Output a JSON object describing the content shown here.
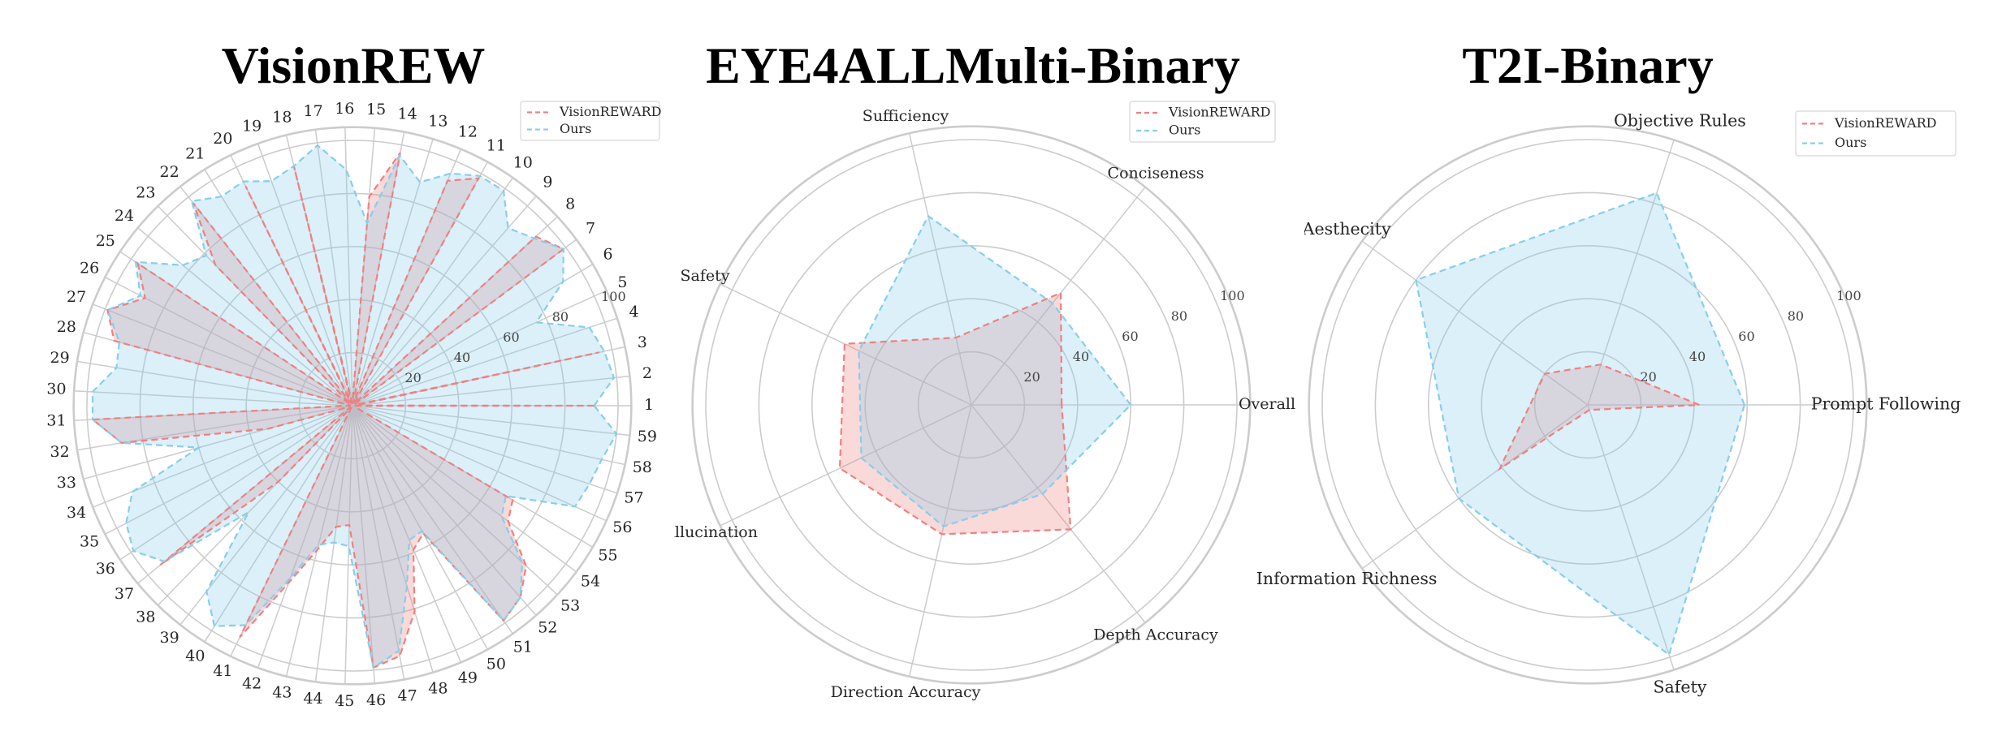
{
  "chart_data": [
    {
      "type": "radar",
      "title": "VisionREW",
      "categories": [
        "1",
        "2",
        "3",
        "4",
        "5",
        "6",
        "7",
        "8",
        "9",
        "10",
        "11",
        "12",
        "13",
        "14",
        "15",
        "16",
        "17",
        "18",
        "19",
        "20",
        "21",
        "22",
        "23",
        "24",
        "25",
        "26",
        "27",
        "28",
        "29",
        "30",
        "31",
        "32",
        "33",
        "34",
        "35",
        "36",
        "37",
        "38",
        "39",
        "40",
        "41",
        "42",
        "43",
        "44",
        "45",
        "46",
        "47",
        "48",
        "49",
        "50",
        "51",
        "52",
        "53",
        "54",
        "55",
        "56",
        "57",
        "58",
        "59"
      ],
      "rlim": [
        0,
        105
      ],
      "rticks": [
        20,
        40,
        60,
        80,
        100
      ],
      "rtick_labels": [
        "20",
        "40",
        "60",
        "80",
        "100"
      ],
      "legend": "top-right",
      "series": [
        {
          "name": "VisionREWARD",
          "color": "#F08080",
          "values": [
            91,
            1,
            95,
            1,
            1,
            1,
            99,
            94,
            1,
            1,
            98,
            92,
            1,
            97,
            79,
            1,
            1,
            93,
            1,
            92,
            1,
            97,
            74,
            1,
            97,
            88,
            99,
            93,
            1,
            1,
            98,
            88,
            33,
            1,
            1,
            1,
            94,
            40,
            1,
            1,
            97,
            71,
            56,
            46,
            45,
            99,
            96,
            81,
            59,
            55,
            99,
            96,
            89,
            73,
            70,
            1,
            1,
            1,
            1
          ]
        },
        {
          "name": "Ours",
          "color": "#87CEEB",
          "values": [
            91,
            99,
            97,
            94,
            76,
            92,
            99,
            93,
            89,
            99,
            99,
            95,
            88,
            96,
            69,
            89,
            99,
            93,
            90,
            94,
            93,
            98,
            79,
            83,
            98,
            90,
            99,
            91,
            90,
            98,
            98,
            88,
            60,
            89,
            96,
            99,
            92,
            56,
            89,
            98,
            92,
            69,
            54,
            52,
            53,
            99,
            94,
            71,
            55,
            54,
            99,
            96,
            87,
            70,
            67,
            92,
            94,
            96,
            100
          ]
        }
      ]
    },
    {
      "type": "radar",
      "title": "EYE4ALLMulti-Binary",
      "categories": [
        "Overall",
        "Conciseness",
        "Sufficiency",
        "Safety",
        "Hallucination",
        "Direction Accuracy",
        "Depth Accuracy"
      ],
      "rlim": [
        0,
        105
      ],
      "rticks": [
        20,
        40,
        60,
        80,
        100
      ],
      "rtick_labels": [
        "20",
        "40",
        "60",
        "80",
        "100"
      ],
      "legend": "top-right",
      "series": [
        {
          "name": "VisionREWARD",
          "color": "#F08080",
          "values": [
            34,
            54,
            26,
            53,
            55,
            50,
            60
          ]
        },
        {
          "name": "Ours",
          "color": "#87CEEB",
          "values": [
            60,
            49,
            73,
            47,
            46,
            47,
            43
          ]
        }
      ]
    },
    {
      "type": "radar",
      "title": "T2I-Binary",
      "categories": [
        "Prompt Following",
        "Objective Rules",
        "Aesthecity",
        "Information Richness",
        "Safety"
      ],
      "rlim": [
        0,
        105
      ],
      "rticks": [
        20,
        40,
        60,
        80,
        100
      ],
      "rtick_labels": [
        "20",
        "40",
        "60",
        "80",
        "100"
      ],
      "legend": "top-right",
      "series": [
        {
          "name": "VisionREWARD",
          "color": "#F08080",
          "values": [
            42,
            16,
            20,
            41,
            2
          ]
        },
        {
          "name": "Ours",
          "color": "#87CEEB",
          "values": [
            59,
            84,
            80,
            60,
            99
          ]
        }
      ]
    }
  ]
}
